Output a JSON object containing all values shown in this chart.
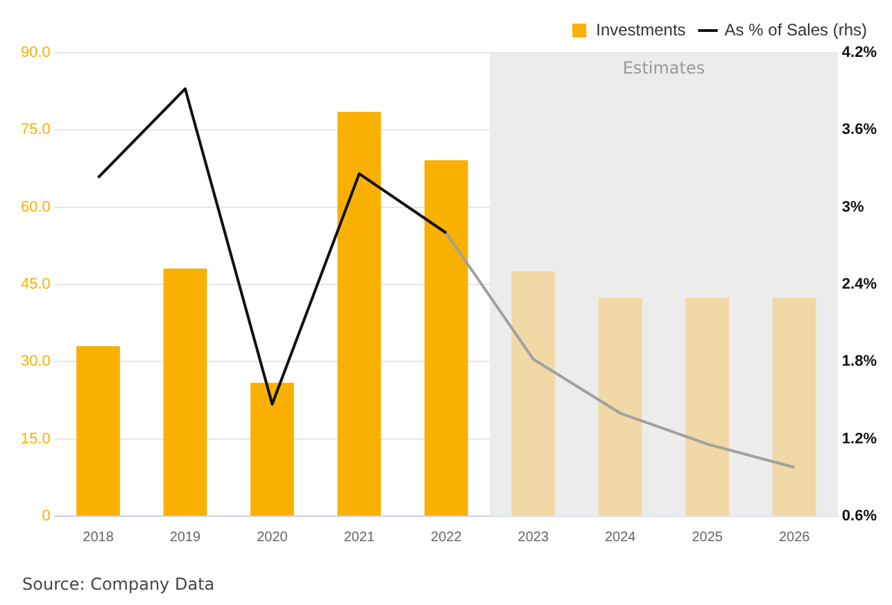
{
  "chart_data": {
    "type": "bar",
    "categories": [
      "2018",
      "2019",
      "2020",
      "2021",
      "2022",
      "2023",
      "2024",
      "2025",
      "2026"
    ],
    "series": [
      {
        "name": "Investments",
        "color": "#f9b000",
        "colors": [
          "#f9b000",
          "#f9b000",
          "#f9b000",
          "#f9b000",
          "#f9b000",
          "#f1d9a5",
          "#f1d9a5",
          "#f1d9a5",
          "#f1d9a5"
        ],
        "values": [
          33.0,
          48.1,
          25.9,
          78.5,
          69.1,
          47.6,
          42.4,
          42.4,
          42.4
        ]
      },
      {
        "name": "As % of Sales (rhs)",
        "type": "line",
        "axis": "y2",
        "color": "#111111",
        "values": [
          3.23,
          3.92,
          1.47,
          3.26,
          2.8,
          null,
          null,
          null,
          null
        ]
      },
      {
        "type": "line",
        "axis": "y2",
        "color": "#a0a0a0",
        "values": [
          null,
          null,
          null,
          null,
          2.8,
          1.82,
          1.4,
          1.16,
          0.98
        ]
      }
    ],
    "ylim": [
      0,
      90
    ],
    "yticks": [
      0,
      {
        "value": 15,
        "label": "15.0"
      },
      {
        "value": 30,
        "label": "30.0"
      },
      {
        "value": 45,
        "label": "45.0"
      },
      {
        "value": 60,
        "label": "60.0"
      },
      {
        "value": 75,
        "label": "75.0"
      },
      {
        "value": 90,
        "label": "90.0"
      }
    ],
    "y2lim": [
      0.6,
      4.2
    ],
    "y2ticks": [
      {
        "value": 0.6,
        "label": "0.6%"
      },
      {
        "value": 1.2,
        "label": "1.2%"
      },
      {
        "value": 1.8,
        "label": "1.8%"
      },
      {
        "value": 2.4,
        "label": "2.4%"
      },
      {
        "value": 3,
        "label": "3%"
      },
      {
        "value": 3.6,
        "label": "3.6%"
      },
      {
        "value": 4.2,
        "label": "4.2%"
      }
    ],
    "bands": [
      {
        "axis": "x",
        "from": "2023",
        "to": "2026",
        "label": "Estimates",
        "color": "#ececec"
      }
    ],
    "grid": "y",
    "legend": "top right",
    "annotations": [
      "Source: Company Data"
    ]
  }
}
